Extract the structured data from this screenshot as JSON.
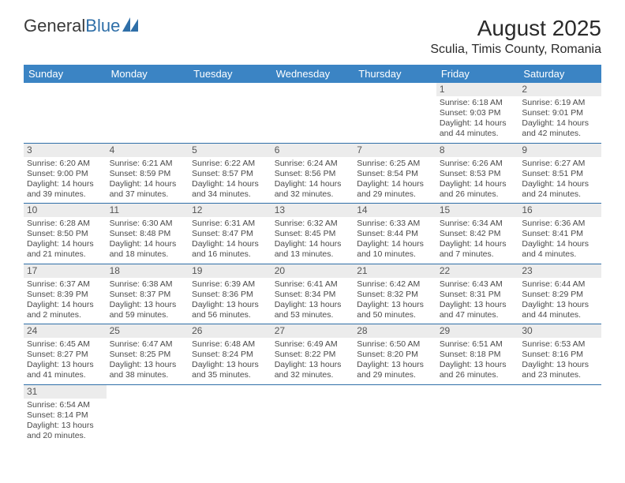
{
  "logo": {
    "text1": "General",
    "text2": "Blue"
  },
  "title": "August 2025",
  "location": "Sculia, Timis County, Romania",
  "colors": {
    "header_bg": "#3b84c4",
    "header_fg": "#ffffff",
    "daynum_bg": "#ececec",
    "border": "#2f6fa8",
    "logo_blue": "#2f6fa8"
  },
  "day_headers": [
    "Sunday",
    "Monday",
    "Tuesday",
    "Wednesday",
    "Thursday",
    "Friday",
    "Saturday"
  ],
  "weeks": [
    [
      null,
      null,
      null,
      null,
      null,
      {
        "n": "1",
        "sr": "Sunrise: 6:18 AM",
        "ss": "Sunset: 9:03 PM",
        "d1": "Daylight: 14 hours",
        "d2": "and 44 minutes."
      },
      {
        "n": "2",
        "sr": "Sunrise: 6:19 AM",
        "ss": "Sunset: 9:01 PM",
        "d1": "Daylight: 14 hours",
        "d2": "and 42 minutes."
      }
    ],
    [
      {
        "n": "3",
        "sr": "Sunrise: 6:20 AM",
        "ss": "Sunset: 9:00 PM",
        "d1": "Daylight: 14 hours",
        "d2": "and 39 minutes."
      },
      {
        "n": "4",
        "sr": "Sunrise: 6:21 AM",
        "ss": "Sunset: 8:59 PM",
        "d1": "Daylight: 14 hours",
        "d2": "and 37 minutes."
      },
      {
        "n": "5",
        "sr": "Sunrise: 6:22 AM",
        "ss": "Sunset: 8:57 PM",
        "d1": "Daylight: 14 hours",
        "d2": "and 34 minutes."
      },
      {
        "n": "6",
        "sr": "Sunrise: 6:24 AM",
        "ss": "Sunset: 8:56 PM",
        "d1": "Daylight: 14 hours",
        "d2": "and 32 minutes."
      },
      {
        "n": "7",
        "sr": "Sunrise: 6:25 AM",
        "ss": "Sunset: 8:54 PM",
        "d1": "Daylight: 14 hours",
        "d2": "and 29 minutes."
      },
      {
        "n": "8",
        "sr": "Sunrise: 6:26 AM",
        "ss": "Sunset: 8:53 PM",
        "d1": "Daylight: 14 hours",
        "d2": "and 26 minutes."
      },
      {
        "n": "9",
        "sr": "Sunrise: 6:27 AM",
        "ss": "Sunset: 8:51 PM",
        "d1": "Daylight: 14 hours",
        "d2": "and 24 minutes."
      }
    ],
    [
      {
        "n": "10",
        "sr": "Sunrise: 6:28 AM",
        "ss": "Sunset: 8:50 PM",
        "d1": "Daylight: 14 hours",
        "d2": "and 21 minutes."
      },
      {
        "n": "11",
        "sr": "Sunrise: 6:30 AM",
        "ss": "Sunset: 8:48 PM",
        "d1": "Daylight: 14 hours",
        "d2": "and 18 minutes."
      },
      {
        "n": "12",
        "sr": "Sunrise: 6:31 AM",
        "ss": "Sunset: 8:47 PM",
        "d1": "Daylight: 14 hours",
        "d2": "and 16 minutes."
      },
      {
        "n": "13",
        "sr": "Sunrise: 6:32 AM",
        "ss": "Sunset: 8:45 PM",
        "d1": "Daylight: 14 hours",
        "d2": "and 13 minutes."
      },
      {
        "n": "14",
        "sr": "Sunrise: 6:33 AM",
        "ss": "Sunset: 8:44 PM",
        "d1": "Daylight: 14 hours",
        "d2": "and 10 minutes."
      },
      {
        "n": "15",
        "sr": "Sunrise: 6:34 AM",
        "ss": "Sunset: 8:42 PM",
        "d1": "Daylight: 14 hours",
        "d2": "and 7 minutes."
      },
      {
        "n": "16",
        "sr": "Sunrise: 6:36 AM",
        "ss": "Sunset: 8:41 PM",
        "d1": "Daylight: 14 hours",
        "d2": "and 4 minutes."
      }
    ],
    [
      {
        "n": "17",
        "sr": "Sunrise: 6:37 AM",
        "ss": "Sunset: 8:39 PM",
        "d1": "Daylight: 14 hours",
        "d2": "and 2 minutes."
      },
      {
        "n": "18",
        "sr": "Sunrise: 6:38 AM",
        "ss": "Sunset: 8:37 PM",
        "d1": "Daylight: 13 hours",
        "d2": "and 59 minutes."
      },
      {
        "n": "19",
        "sr": "Sunrise: 6:39 AM",
        "ss": "Sunset: 8:36 PM",
        "d1": "Daylight: 13 hours",
        "d2": "and 56 minutes."
      },
      {
        "n": "20",
        "sr": "Sunrise: 6:41 AM",
        "ss": "Sunset: 8:34 PM",
        "d1": "Daylight: 13 hours",
        "d2": "and 53 minutes."
      },
      {
        "n": "21",
        "sr": "Sunrise: 6:42 AM",
        "ss": "Sunset: 8:32 PM",
        "d1": "Daylight: 13 hours",
        "d2": "and 50 minutes."
      },
      {
        "n": "22",
        "sr": "Sunrise: 6:43 AM",
        "ss": "Sunset: 8:31 PM",
        "d1": "Daylight: 13 hours",
        "d2": "and 47 minutes."
      },
      {
        "n": "23",
        "sr": "Sunrise: 6:44 AM",
        "ss": "Sunset: 8:29 PM",
        "d1": "Daylight: 13 hours",
        "d2": "and 44 minutes."
      }
    ],
    [
      {
        "n": "24",
        "sr": "Sunrise: 6:45 AM",
        "ss": "Sunset: 8:27 PM",
        "d1": "Daylight: 13 hours",
        "d2": "and 41 minutes."
      },
      {
        "n": "25",
        "sr": "Sunrise: 6:47 AM",
        "ss": "Sunset: 8:25 PM",
        "d1": "Daylight: 13 hours",
        "d2": "and 38 minutes."
      },
      {
        "n": "26",
        "sr": "Sunrise: 6:48 AM",
        "ss": "Sunset: 8:24 PM",
        "d1": "Daylight: 13 hours",
        "d2": "and 35 minutes."
      },
      {
        "n": "27",
        "sr": "Sunrise: 6:49 AM",
        "ss": "Sunset: 8:22 PM",
        "d1": "Daylight: 13 hours",
        "d2": "and 32 minutes."
      },
      {
        "n": "28",
        "sr": "Sunrise: 6:50 AM",
        "ss": "Sunset: 8:20 PM",
        "d1": "Daylight: 13 hours",
        "d2": "and 29 minutes."
      },
      {
        "n": "29",
        "sr": "Sunrise: 6:51 AM",
        "ss": "Sunset: 8:18 PM",
        "d1": "Daylight: 13 hours",
        "d2": "and 26 minutes."
      },
      {
        "n": "30",
        "sr": "Sunrise: 6:53 AM",
        "ss": "Sunset: 8:16 PM",
        "d1": "Daylight: 13 hours",
        "d2": "and 23 minutes."
      }
    ],
    [
      {
        "n": "31",
        "sr": "Sunrise: 6:54 AM",
        "ss": "Sunset: 8:14 PM",
        "d1": "Daylight: 13 hours",
        "d2": "and 20 minutes."
      },
      null,
      null,
      null,
      null,
      null,
      null
    ]
  ]
}
